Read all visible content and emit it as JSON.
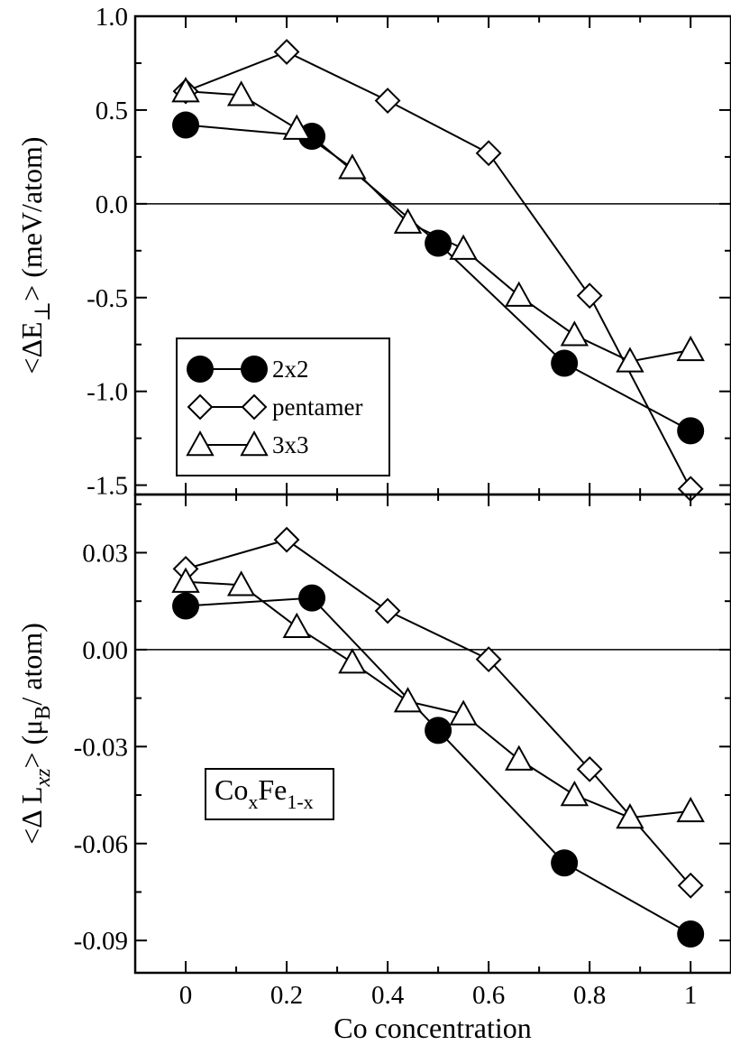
{
  "chart_data": [
    {
      "type": "line",
      "panel": "top",
      "ylabel": {
        "pre": "<ΔE",
        "sub": "⊥",
        "post": ">  (meV/atom)"
      },
      "ylim": [
        -1.55,
        1.0
      ],
      "yticks": [
        1.0,
        0.5,
        0.0,
        -0.5,
        -1.0,
        -1.5
      ],
      "ytick_labels": [
        "1.0",
        "0.5",
        "0.0",
        "-0.5",
        "-1.0",
        "-1.5"
      ],
      "xlim": [
        -0.1,
        1.08
      ],
      "zero_line": true,
      "legend": {
        "placement": "lower-left",
        "entries": [
          {
            "label": "2x2",
            "marker": "circle"
          },
          {
            "label": "pentamer",
            "marker": "diamond"
          },
          {
            "label": "3x3",
            "marker": "triangle"
          }
        ]
      },
      "series": [
        {
          "name": "2x2",
          "marker": "circle",
          "x": [
            0,
            0.25,
            0.5,
            0.75,
            1.0
          ],
          "y": [
            0.42,
            0.36,
            -0.21,
            -0.85,
            -1.21
          ]
        },
        {
          "name": "pentamer",
          "marker": "diamond",
          "x": [
            0,
            0.2,
            0.4,
            0.6,
            0.8,
            1.0
          ],
          "y": [
            0.6,
            0.81,
            0.55,
            0.27,
            -0.49,
            -1.52
          ]
        },
        {
          "name": "3x3",
          "marker": "triangle",
          "x": [
            0,
            0.11,
            0.22,
            0.33,
            0.44,
            0.55,
            0.66,
            0.77,
            0.88,
            1.0
          ],
          "y": [
            0.6,
            0.58,
            0.4,
            0.19,
            -0.1,
            -0.24,
            -0.49,
            -0.7,
            -0.84,
            -0.78
          ]
        }
      ]
    },
    {
      "type": "line",
      "panel": "bottom",
      "ylabel": {
        "pre": "<Δ L",
        "sub": "xz",
        "mid": "> (μ",
        "sub2": "B",
        "post": "/ atom)"
      },
      "ylim": [
        -0.1,
        0.048
      ],
      "yticks": [
        0.03,
        0.0,
        -0.03,
        -0.06,
        -0.09
      ],
      "ytick_labels": [
        "0.03",
        "0.00",
        "-0.03",
        "-0.06",
        "-0.09"
      ],
      "xlim": [
        -0.1,
        1.08
      ],
      "xticks": [
        0,
        0.2,
        0.4,
        0.6,
        0.8,
        1
      ],
      "xtick_labels": [
        "0",
        "0.2",
        "0.4",
        "0.6",
        "0.8",
        "1"
      ],
      "xlabel": "Co concentration",
      "zero_line": true,
      "annotation": {
        "base1": "Co",
        "sub1": "x",
        "base2": "Fe",
        "sub2": "1-x"
      },
      "series": [
        {
          "name": "2x2",
          "marker": "circle",
          "x": [
            0,
            0.25,
            0.5,
            0.75,
            1.0
          ],
          "y": [
            0.0135,
            0.016,
            -0.025,
            -0.066,
            -0.088
          ]
        },
        {
          "name": "pentamer",
          "marker": "diamond",
          "x": [
            0,
            0.2,
            0.4,
            0.6,
            0.8,
            1.0
          ],
          "y": [
            0.025,
            0.034,
            0.012,
            -0.003,
            -0.037,
            -0.073
          ]
        },
        {
          "name": "3x3",
          "marker": "triangle",
          "x": [
            0,
            0.11,
            0.22,
            0.33,
            0.44,
            0.55,
            0.66,
            0.77,
            0.88,
            1.0
          ],
          "y": [
            0.021,
            0.02,
            0.007,
            -0.004,
            -0.016,
            -0.02,
            -0.034,
            -0.045,
            -0.052,
            -0.05
          ]
        }
      ]
    }
  ]
}
